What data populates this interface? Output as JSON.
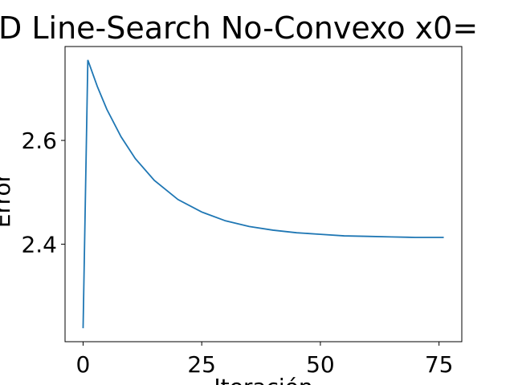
{
  "chart_data": {
    "type": "line",
    "title": "D Line-Search No-Convexo x0=",
    "xlabel": "Iteración",
    "ylabel": "Error",
    "x": [
      0,
      1,
      3,
      5,
      8,
      11,
      15,
      20,
      25,
      30,
      35,
      40,
      45,
      50,
      55,
      60,
      65,
      70,
      76
    ],
    "series": [
      {
        "color": "#1f77b4",
        "values": [
          2.238,
          2.755,
          2.704,
          2.66,
          2.607,
          2.565,
          2.523,
          2.486,
          2.462,
          2.445,
          2.434,
          2.427,
          2.422,
          2.419,
          2.416,
          2.415,
          2.414,
          2.413,
          2.413
        ]
      }
    ],
    "xlim": [
      -3.8,
      79.8
    ],
    "xticks": [
      0,
      25,
      50,
      75
    ],
    "ylim": [
      2.212,
      2.781
    ],
    "yticks": [
      2.4,
      2.6
    ]
  }
}
